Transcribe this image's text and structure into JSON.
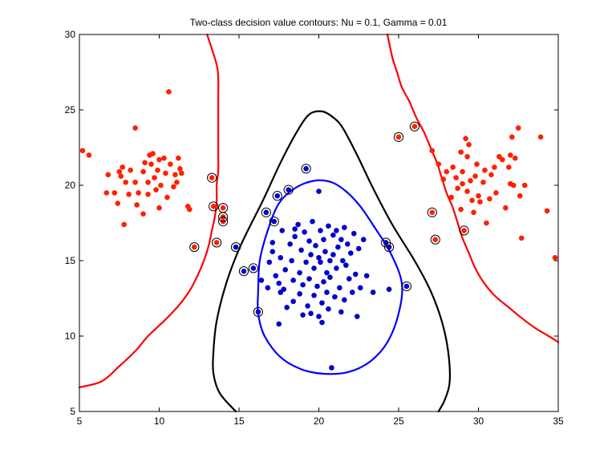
{
  "chart_data": {
    "type": "scatter",
    "title": "Two-class decision value contours: Nu =   0.1, Gamma =  0.01",
    "xlabel": "",
    "ylabel": "",
    "xlim": [
      5,
      35
    ],
    "ylim": [
      5,
      30
    ],
    "xticks": [
      "5",
      "10",
      "15",
      "20",
      "25",
      "30",
      "35"
    ],
    "yticks": [
      "5",
      "10",
      "15",
      "20",
      "25",
      "30"
    ],
    "colors": {
      "class_red": "#ff2000",
      "class_blue": "#0000cc",
      "contour_red": "#ff0000",
      "contour_blue": "#0000ff",
      "contour_black": "#000000",
      "support_vector_ring": "#000000"
    },
    "series": [
      {
        "class": "red",
        "values": [
          [
            5.2,
            22.3
          ],
          [
            5.6,
            22.0
          ],
          [
            6.8,
            20.7
          ],
          [
            6.7,
            19.5
          ],
          [
            7.2,
            19.5
          ],
          [
            7.4,
            18.8
          ],
          [
            7.5,
            20.9
          ],
          [
            7.6,
            20.6
          ],
          [
            7.7,
            21.2
          ],
          [
            7.8,
            17.4
          ],
          [
            7.9,
            20.2
          ],
          [
            8.1,
            19.4
          ],
          [
            8.2,
            21.0
          ],
          [
            8.5,
            23.8
          ],
          [
            8.5,
            20.2
          ],
          [
            8.6,
            18.7
          ],
          [
            8.7,
            19.5
          ],
          [
            9.0,
            18.1
          ],
          [
            9.0,
            20.9
          ],
          [
            9.1,
            21.5
          ],
          [
            9.3,
            20.2
          ],
          [
            9.3,
            19.4
          ],
          [
            9.4,
            22.0
          ],
          [
            9.5,
            21.4
          ],
          [
            9.6,
            22.1
          ],
          [
            9.7,
            20.5
          ],
          [
            9.8,
            19.7
          ],
          [
            9.9,
            21.0
          ],
          [
            10.0,
            21.7
          ],
          [
            10.0,
            18.5
          ],
          [
            10.1,
            20.0
          ],
          [
            10.3,
            21.8
          ],
          [
            10.4,
            20.8
          ],
          [
            10.5,
            19.2
          ],
          [
            10.6,
            26.2
          ],
          [
            10.7,
            21.4
          ],
          [
            10.9,
            19.9
          ],
          [
            11.0,
            20.7
          ],
          [
            11.1,
            20.2
          ],
          [
            11.2,
            21.8
          ],
          [
            11.3,
            21.1
          ],
          [
            11.4,
            20.8
          ],
          [
            11.8,
            18.6
          ],
          [
            11.9,
            18.4
          ],
          [
            12.2,
            15.9
          ],
          [
            13.3,
            20.5
          ],
          [
            13.4,
            18.6
          ],
          [
            13.6,
            16.2
          ],
          [
            14.0,
            18.5
          ],
          [
            14.0,
            17.9
          ],
          [
            14.0,
            17.6
          ],
          [
            25.0,
            23.2
          ],
          [
            26.0,
            23.9
          ],
          [
            27.1,
            18.2
          ],
          [
            27.1,
            22.3
          ],
          [
            27.3,
            16.4
          ],
          [
            27.5,
            21.4
          ],
          [
            27.8,
            20.4
          ],
          [
            28.0,
            20.9
          ],
          [
            28.3,
            19.2
          ],
          [
            28.4,
            21.2
          ],
          [
            28.6,
            20.5
          ],
          [
            28.7,
            19.8
          ],
          [
            28.9,
            22.2
          ],
          [
            28.9,
            18.4
          ],
          [
            29.0,
            20.1
          ],
          [
            29.0,
            20.9
          ],
          [
            29.1,
            17.0
          ],
          [
            29.2,
            23.1
          ],
          [
            29.3,
            21.9
          ],
          [
            29.3,
            19.6
          ],
          [
            29.4,
            22.7
          ],
          [
            29.5,
            20.3
          ],
          [
            29.6,
            19.0
          ],
          [
            29.7,
            18.2
          ],
          [
            29.8,
            20.6
          ],
          [
            29.9,
            21.4
          ],
          [
            30.0,
            19.3
          ],
          [
            30.1,
            18.9
          ],
          [
            30.3,
            20.2
          ],
          [
            30.4,
            21.0
          ],
          [
            30.5,
            17.5
          ],
          [
            30.7,
            19.1
          ],
          [
            30.8,
            20.7
          ],
          [
            31.0,
            21.2
          ],
          [
            31.1,
            19.5
          ],
          [
            31.3,
            21.9
          ],
          [
            31.5,
            21.7
          ],
          [
            31.7,
            18.5
          ],
          [
            31.9,
            21.2
          ],
          [
            32.0,
            22.0
          ],
          [
            32.0,
            20.1
          ],
          [
            32.1,
            23.2
          ],
          [
            32.2,
            20.0
          ],
          [
            32.3,
            21.8
          ],
          [
            32.5,
            23.8
          ],
          [
            32.6,
            19.3
          ],
          [
            32.7,
            16.5
          ],
          [
            32.9,
            20.0
          ],
          [
            33.9,
            23.2
          ],
          [
            34.3,
            18.3
          ],
          [
            34.8,
            15.2
          ]
        ],
        "support_vectors": [
          [
            12.2,
            15.9
          ],
          [
            13.3,
            20.5
          ],
          [
            13.4,
            18.6
          ],
          [
            13.6,
            16.2
          ],
          [
            14.0,
            18.5
          ],
          [
            14.0,
            17.9
          ],
          [
            14.0,
            17.6
          ],
          [
            25.0,
            23.2
          ],
          [
            26.0,
            23.9
          ],
          [
            27.1,
            18.2
          ],
          [
            27.3,
            16.4
          ],
          [
            29.1,
            17.0
          ]
        ]
      },
      {
        "class": "blue",
        "values": [
          [
            14.8,
            15.9
          ],
          [
            15.3,
            14.3
          ],
          [
            15.9,
            14.5
          ],
          [
            16.2,
            11.6
          ],
          [
            16.4,
            13.7
          ],
          [
            16.7,
            18.2
          ],
          [
            16.8,
            13.2
          ],
          [
            16.9,
            14.9
          ],
          [
            17.1,
            16.2
          ],
          [
            17.1,
            15.6
          ],
          [
            17.2,
            17.6
          ],
          [
            17.3,
            14.0
          ],
          [
            17.4,
            19.3
          ],
          [
            17.5,
            13.5
          ],
          [
            17.5,
            10.8
          ],
          [
            17.6,
            12.9
          ],
          [
            17.6,
            15.2
          ],
          [
            17.7,
            17.0
          ],
          [
            17.8,
            13.1
          ],
          [
            17.9,
            14.4
          ],
          [
            18.0,
            11.9
          ],
          [
            18.1,
            19.7
          ],
          [
            18.2,
            16.1
          ],
          [
            18.3,
            15.0
          ],
          [
            18.4,
            13.7
          ],
          [
            18.4,
            12.3
          ],
          [
            18.5,
            17.1
          ],
          [
            18.5,
            16.6
          ],
          [
            18.7,
            17.4
          ],
          [
            18.8,
            14.2
          ],
          [
            18.8,
            12.8
          ],
          [
            18.9,
            15.7
          ],
          [
            19.0,
            13.4
          ],
          [
            19.0,
            11.4
          ],
          [
            19.1,
            16.9
          ],
          [
            19.2,
            21.1
          ],
          [
            19.2,
            14.9
          ],
          [
            19.3,
            12.0
          ],
          [
            19.4,
            16.3
          ],
          [
            19.4,
            13.8
          ],
          [
            19.5,
            15.4
          ],
          [
            19.5,
            11.5
          ],
          [
            19.6,
            17.6
          ],
          [
            19.7,
            14.5
          ],
          [
            19.7,
            12.7
          ],
          [
            19.8,
            16.0
          ],
          [
            19.9,
            13.3
          ],
          [
            20.0,
            19.6
          ],
          [
            20.0,
            15.2
          ],
          [
            20.0,
            11.3
          ],
          [
            20.1,
            17.0
          ],
          [
            20.1,
            14.9
          ],
          [
            20.2,
            12.2
          ],
          [
            20.2,
            10.9
          ],
          [
            20.3,
            16.4
          ],
          [
            20.3,
            13.6
          ],
          [
            20.4,
            15.6
          ],
          [
            20.5,
            14.2
          ],
          [
            20.5,
            12.9
          ],
          [
            20.6,
            17.3
          ],
          [
            20.6,
            11.8
          ],
          [
            20.7,
            15.0
          ],
          [
            20.7,
            13.9
          ],
          [
            20.8,
            7.9
          ],
          [
            20.9,
            16.7
          ],
          [
            20.9,
            15.4
          ],
          [
            21.0,
            12.6
          ],
          [
            21.1,
            17.0
          ],
          [
            21.1,
            14.5
          ],
          [
            21.2,
            15.9
          ],
          [
            21.3,
            13.2
          ],
          [
            21.4,
            16.4
          ],
          [
            21.4,
            11.6
          ],
          [
            21.5,
            15.0
          ],
          [
            21.6,
            17.2
          ],
          [
            21.6,
            12.4
          ],
          [
            21.7,
            14.7
          ],
          [
            21.8,
            16.1
          ],
          [
            21.9,
            13.8
          ],
          [
            22.0,
            15.5
          ],
          [
            22.1,
            12.9
          ],
          [
            22.2,
            16.8
          ],
          [
            22.3,
            14.1
          ],
          [
            22.4,
            11.3
          ],
          [
            22.5,
            15.8
          ],
          [
            22.6,
            13.2
          ],
          [
            22.8,
            16.4
          ],
          [
            23.0,
            14.0
          ],
          [
            23.4,
            12.9
          ],
          [
            24.2,
            16.2
          ],
          [
            24.4,
            13.1
          ],
          [
            24.4,
            15.9
          ],
          [
            25.5,
            13.3
          ]
        ],
        "support_vectors": [
          [
            14.8,
            15.9
          ],
          [
            15.3,
            14.3
          ],
          [
            15.9,
            14.5
          ],
          [
            16.2,
            11.6
          ],
          [
            16.7,
            18.2
          ],
          [
            17.2,
            17.6
          ],
          [
            17.4,
            19.3
          ],
          [
            18.1,
            19.7
          ],
          [
            19.2,
            21.1
          ],
          [
            24.2,
            16.2
          ],
          [
            24.4,
            15.9
          ],
          [
            25.5,
            13.3
          ]
        ]
      }
    ],
    "contours": [
      {
        "color": "red",
        "points": [
          [
            13.0,
            30.0
          ],
          [
            13.6,
            28.0
          ],
          [
            13.7,
            27.0
          ],
          [
            13.7,
            26.0
          ],
          [
            13.7,
            25.0
          ],
          [
            13.7,
            24.0
          ],
          [
            13.7,
            23.0
          ],
          [
            13.7,
            22.0
          ],
          [
            13.7,
            21.0
          ],
          [
            13.6,
            20.0
          ],
          [
            13.6,
            19.0
          ],
          [
            13.5,
            18.0
          ],
          [
            13.3,
            17.0
          ],
          [
            13.1,
            16.0
          ],
          [
            12.8,
            15.0
          ],
          [
            12.4,
            14.0
          ],
          [
            11.9,
            13.0
          ],
          [
            11.2,
            12.0
          ],
          [
            10.3,
            11.0
          ],
          [
            9.3,
            10.0
          ],
          [
            8.5,
            9.0
          ],
          [
            7.5,
            8.0
          ],
          [
            6.4,
            7.0
          ],
          [
            5.0,
            6.6
          ]
        ]
      },
      {
        "color": "red",
        "points": [
          [
            24.3,
            30.0
          ],
          [
            24.6,
            28.5
          ],
          [
            24.9,
            27.5
          ],
          [
            25.2,
            26.5
          ],
          [
            25.7,
            25.5
          ],
          [
            26.1,
            24.5
          ],
          [
            26.6,
            23.5
          ],
          [
            27.0,
            22.5
          ],
          [
            27.4,
            21.5
          ],
          [
            27.7,
            20.5
          ],
          [
            28.0,
            19.5
          ],
          [
            28.4,
            18.5
          ],
          [
            28.7,
            17.5
          ],
          [
            29.0,
            16.5
          ],
          [
            29.4,
            15.5
          ],
          [
            29.8,
            14.5
          ],
          [
            30.3,
            13.6
          ],
          [
            31.0,
            12.7
          ],
          [
            31.9,
            11.9
          ],
          [
            32.7,
            11.2
          ],
          [
            33.6,
            10.5
          ],
          [
            34.4,
            10.0
          ],
          [
            35.0,
            9.6
          ]
        ]
      },
      {
        "color": "black",
        "points": [
          [
            14.8,
            5.0
          ],
          [
            13.8,
            6.2
          ],
          [
            13.4,
            7.5
          ],
          [
            13.4,
            9.0
          ],
          [
            13.6,
            11.0
          ],
          [
            14.2,
            13.5
          ],
          [
            15.1,
            16.0
          ],
          [
            16.5,
            19.0
          ],
          [
            17.6,
            21.5
          ],
          [
            18.6,
            23.5
          ],
          [
            19.4,
            24.7
          ],
          [
            20.2,
            24.9
          ],
          [
            20.9,
            24.5
          ],
          [
            21.5,
            23.8
          ],
          [
            22.4,
            22.0
          ],
          [
            23.4,
            19.8
          ],
          [
            24.6,
            17.4
          ],
          [
            26.0,
            15.0
          ],
          [
            27.0,
            13.0
          ],
          [
            27.7,
            11.0
          ],
          [
            28.1,
            9.0
          ],
          [
            28.2,
            7.0
          ],
          [
            27.9,
            5.8
          ],
          [
            27.5,
            5.0
          ]
        ]
      },
      {
        "color": "blue",
        "closed": true,
        "points": [
          [
            16.2,
            13.0
          ],
          [
            16.3,
            15.0
          ],
          [
            16.8,
            17.0
          ],
          [
            17.5,
            18.8
          ],
          [
            18.5,
            19.8
          ],
          [
            19.7,
            20.3
          ],
          [
            20.8,
            20.2
          ],
          [
            21.7,
            19.6
          ],
          [
            22.6,
            18.6
          ],
          [
            23.5,
            17.2
          ],
          [
            24.5,
            15.5
          ],
          [
            25.2,
            13.5
          ],
          [
            25.0,
            11.5
          ],
          [
            24.3,
            9.6
          ],
          [
            23.2,
            8.3
          ],
          [
            21.8,
            7.6
          ],
          [
            20.3,
            7.5
          ],
          [
            18.9,
            7.8
          ],
          [
            17.6,
            8.6
          ],
          [
            16.6,
            10.0
          ],
          [
            16.2,
            11.5
          ]
        ]
      }
    ]
  }
}
